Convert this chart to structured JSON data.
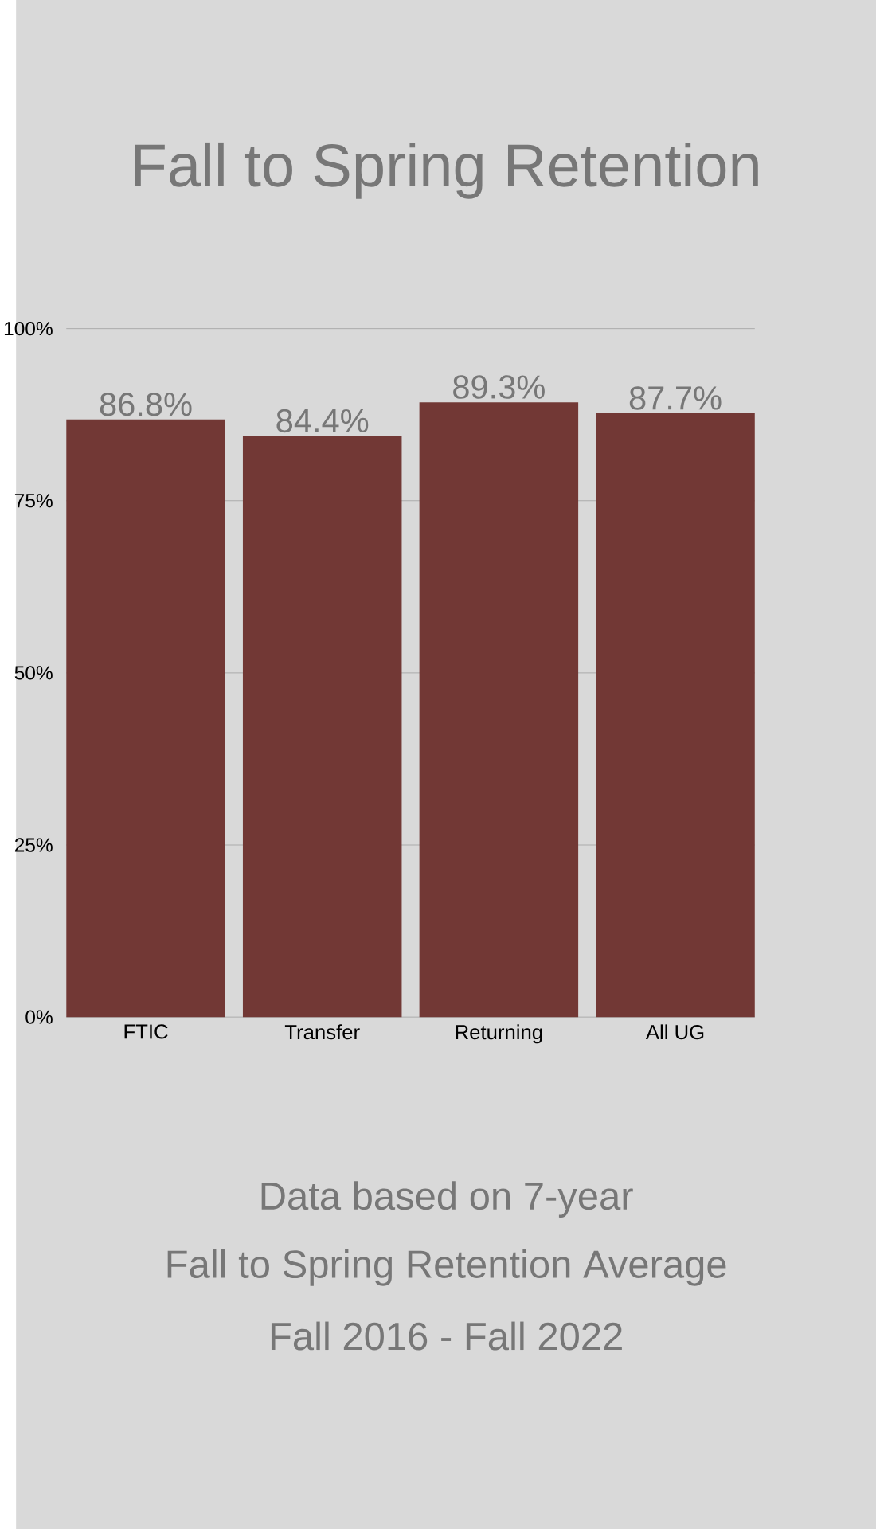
{
  "chart_data": {
    "type": "bar",
    "title": "Fall to Spring Retention",
    "categories": [
      "FTIC",
      "Transfer",
      "Returning",
      "All UG"
    ],
    "values": [
      86.8,
      84.4,
      89.3,
      87.7
    ],
    "value_labels": [
      "86.8%",
      "84.4%",
      "89.3%",
      "87.7%"
    ],
    "color": "#723835",
    "ylim": [
      0,
      100
    ],
    "yticks": [
      {
        "value": 0,
        "label": "0%"
      },
      {
        "value": 25,
        "label": "25%"
      },
      {
        "value": 50,
        "label": "50%"
      },
      {
        "value": 75,
        "label": "75%"
      },
      {
        "value": 100,
        "label": "100%"
      }
    ],
    "grid": "y",
    "annotations": [
      "Data based on 7-year",
      "Fall to Spring Retention Average",
      "Fall 2016 - Fall 2022"
    ]
  }
}
